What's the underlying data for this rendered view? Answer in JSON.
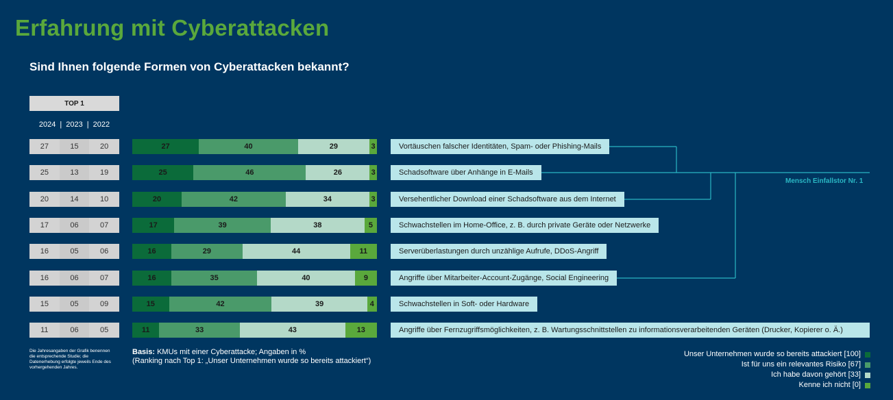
{
  "title": "Erfahrung mit Cyberattacken",
  "subtitle": "Sind Ihnen folgende Formen von Cyberattacken bekannt?",
  "top1_label": "TOP 1",
  "years": [
    "2024",
    "2023",
    "2022"
  ],
  "year_separator": "|",
  "annotation": "Mensch Einfallstor Nr. 1",
  "note": "Die Jahresangaben der Grafik benennen die entsprechende Studie; die Datenerhebung erfolgte jeweils Ende des vorhergehenden Jahres.",
  "basis_label": "Basis:",
  "basis_text": "KMUs mit einer Cyberattacke; Angaben in %",
  "basis_text2": "(Ranking nach Top 1: „Unser Unternehmen wurde so bereits attackiert“)",
  "colors": {
    "background": "#003660",
    "title": "#5aa83c",
    "series": [
      "#0b6b3a",
      "#4a9a6a",
      "#b4d9c8",
      "#5aa83c"
    ],
    "label_box": "#b9e6ea",
    "connector": "#2ab7c4"
  },
  "chart_data": {
    "type": "bar",
    "orientation": "horizontal",
    "stacked": true,
    "categories": [
      "Vortäuschen falscher Identitäten, Spam- oder Phishing-Mails",
      "Schadsoftware über Anhänge in E-Mails",
      "Versehentlicher Download einer Schadsoftware aus dem Internet",
      "Schwachstellen im Home-Office, z. B. durch private Geräte oder Netzwerke",
      "Serverüberlastungen durch unzählige Aufrufe, DDoS-Angriff",
      "Angriffe über Mitarbeiter-Account-Zugänge, Social Engineering",
      "Schwachstellen in Soft- oder Hardware",
      "Angriffe über Fernzugriffsmöglichkeiten, z. B. Wartungsschnittstellen zu informationsverarbeitenden Geräten (Drucker, Kopierer o. Ä.)"
    ],
    "series": [
      {
        "name": "Unser Unternehmen wurde so bereits attackiert [100]",
        "values": [
          27,
          25,
          20,
          17,
          16,
          16,
          15,
          11
        ]
      },
      {
        "name": "Ist für uns ein relevantes Risiko [67]",
        "values": [
          40,
          46,
          42,
          39,
          29,
          35,
          42,
          33
        ]
      },
      {
        "name": "Ich habe davon gehört [33]",
        "values": [
          29,
          26,
          34,
          38,
          44,
          40,
          39,
          43
        ]
      },
      {
        "name": "Kenne ich nicht [0]",
        "values": [
          3,
          3,
          3,
          5,
          11,
          9,
          4,
          13
        ]
      }
    ],
    "top1_history": [
      [
        "27",
        "15",
        "20"
      ],
      [
        "25",
        "13",
        "19"
      ],
      [
        "20",
        "14",
        "10"
      ],
      [
        "17",
        "06",
        "07"
      ],
      [
        "16",
        "05",
        "06"
      ],
      [
        "16",
        "06",
        "07"
      ],
      [
        "15",
        "05",
        "09"
      ],
      [
        "11",
        "06",
        "05"
      ]
    ],
    "xlim": [
      0,
      100
    ],
    "legend_position": "bottom-right",
    "grid": false
  }
}
